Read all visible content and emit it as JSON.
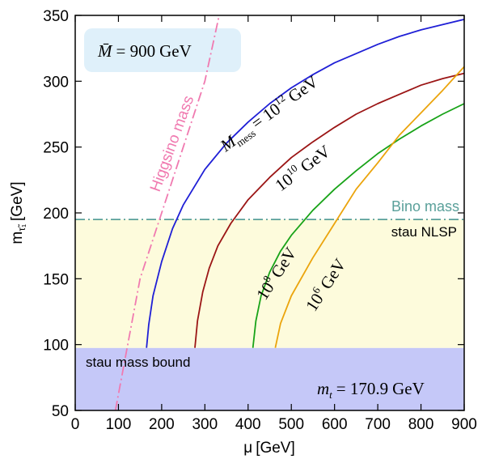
{
  "chart_data": {
    "type": "line",
    "xlabel_main": "μ",
    "xlabel_unit": "[GeV]",
    "ylabel_main": "m",
    "ylabel_sub": "τ̃₁",
    "ylabel_unit": "[GeV]",
    "xlim": [
      0,
      900
    ],
    "ylim": [
      50,
      350
    ],
    "xticks": [
      0,
      100,
      200,
      300,
      400,
      500,
      600,
      700,
      800,
      900
    ],
    "yticks": [
      50,
      100,
      150,
      200,
      250,
      300,
      350
    ],
    "grid": false,
    "regions": [
      {
        "name": "stau mass bound",
        "label": "stau mass bound",
        "ymin": 50,
        "ymax": 97.5,
        "color": "#c5c8f8"
      },
      {
        "name": "stau NLSP",
        "label": "stau NLSP",
        "ymin": 97.5,
        "ymax": 195,
        "color": "#fdfbdc"
      }
    ],
    "hlines": [
      {
        "name": "Bino mass",
        "label": "Bino mass",
        "y": 195,
        "color": "#5aa09a",
        "style": "dashdot"
      }
    ],
    "series": [
      {
        "name": "M_mess = 10^12 GeV",
        "label_main": "M",
        "label_sub": "mess",
        "label_eq": "= 10",
        "label_exp": "12",
        "label_unit": "GeV",
        "color": "#1f1fd6",
        "x": [
          165,
          170,
          180,
          200,
          225,
          250,
          300,
          350,
          400,
          450,
          500,
          550,
          600,
          650,
          700,
          750,
          800,
          850,
          900
        ],
        "y": [
          97.5,
          115,
          137,
          163,
          188,
          206,
          233,
          253,
          269,
          283,
          295,
          305,
          314,
          321,
          328,
          334,
          339,
          343,
          347
        ]
      },
      {
        "name": "10^10 GeV",
        "label_main": "10",
        "label_exp": "10",
        "label_unit": "GeV",
        "color": "#9b1515",
        "x": [
          277,
          283,
          295,
          310,
          330,
          360,
          400,
          450,
          500,
          550,
          600,
          650,
          700,
          750,
          800,
          850,
          900
        ],
        "y": [
          97.5,
          118,
          140,
          158,
          175,
          192,
          210,
          227,
          242,
          254,
          265,
          275,
          283,
          290,
          297,
          302,
          306
        ]
      },
      {
        "name": "10^8 GeV",
        "label_main": "10",
        "label_exp": "8",
        "label_unit": "GeV",
        "color": "#18a318",
        "x": [
          411,
          418,
          430,
          450,
          475,
          500,
          550,
          600,
          650,
          700,
          750,
          800,
          850,
          900
        ],
        "y": [
          97.5,
          118,
          137,
          155,
          171,
          183,
          202,
          218,
          232,
          245,
          256,
          266,
          275,
          283
        ]
      },
      {
        "name": "10^6 GeV",
        "label_main": "10",
        "label_exp": "6",
        "label_unit": "GeV",
        "color": "#eba40c",
        "x": [
          463,
          475,
          500,
          550,
          600,
          650,
          700,
          750,
          800,
          850,
          900
        ],
        "y": [
          97.5,
          116,
          137,
          166,
          192,
          218,
          238,
          259,
          276,
          293,
          311
        ]
      },
      {
        "name": "Higgsino mass",
        "label": "Higgsino mass",
        "color": "#f07ab0",
        "style": "dashdot",
        "x": [
          93,
          150,
          200,
          250,
          300,
          333
        ],
        "y": [
          50,
          150,
          200,
          250,
          300,
          350
        ]
      }
    ],
    "annotations": [
      {
        "name": "mbar-box",
        "lhs": "M̄",
        "eq": "= 900",
        "unit": "GeV",
        "box_color": "#dff0fa"
      },
      {
        "name": "mtop",
        "lhs": "m",
        "lhs_sub": "t",
        "eq": "= 170.9",
        "unit": "GeV"
      }
    ]
  }
}
